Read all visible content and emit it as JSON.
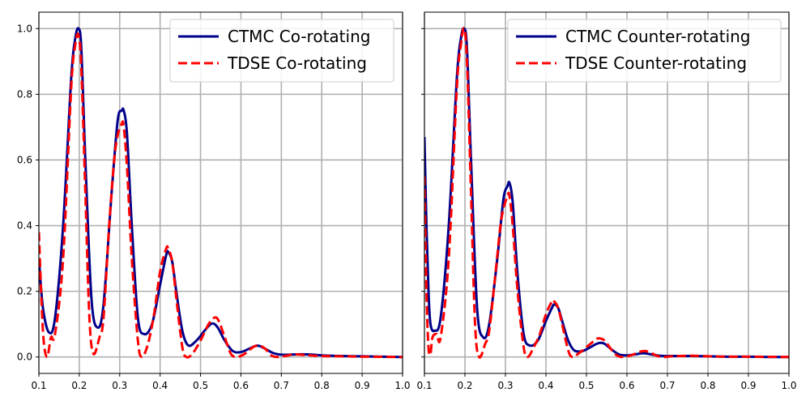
{
  "chart_data": [
    {
      "type": "line",
      "title": "",
      "xlabel": "",
      "ylabel": "",
      "xlim": [
        0.1,
        1.0
      ],
      "ylim": [
        -0.05,
        1.05
      ],
      "grid": true,
      "legend_position": "top-right",
      "x_ticks": [
        "0.1",
        "0.2",
        "0.3",
        "0.4",
        "0.5",
        "0.6",
        "0.7",
        "0.8",
        "0.9",
        "1.0"
      ],
      "y_ticks": [
        "0.0",
        "0.2",
        "0.4",
        "0.6",
        "0.8",
        "1.0"
      ],
      "series": [
        {
          "name": "CTMC Co-rotating",
          "color": "#00008b",
          "style": "solid",
          "x": [
            0.1,
            0.11,
            0.125,
            0.14,
            0.16,
            0.18,
            0.19,
            0.198,
            0.205,
            0.215,
            0.23,
            0.245,
            0.26,
            0.28,
            0.295,
            0.305,
            0.31,
            0.318,
            0.33,
            0.345,
            0.36,
            0.38,
            0.4,
            0.415,
            0.42,
            0.43,
            0.44,
            0.455,
            0.47,
            0.49,
            0.51,
            0.525,
            0.535,
            0.545,
            0.56,
            0.58,
            0.6,
            0.62,
            0.635,
            0.645,
            0.66,
            0.68,
            0.7,
            0.72,
            0.74,
            0.76,
            0.78,
            0.8,
            0.85,
            0.9,
            0.95,
            1.0
          ],
          "y": [
            0.3,
            0.15,
            0.075,
            0.12,
            0.4,
            0.85,
            0.97,
            1.0,
            0.94,
            0.6,
            0.18,
            0.09,
            0.16,
            0.5,
            0.72,
            0.75,
            0.75,
            0.68,
            0.4,
            0.12,
            0.07,
            0.1,
            0.22,
            0.31,
            0.32,
            0.29,
            0.2,
            0.08,
            0.035,
            0.05,
            0.08,
            0.1,
            0.1,
            0.085,
            0.05,
            0.018,
            0.015,
            0.025,
            0.033,
            0.034,
            0.025,
            0.012,
            0.007,
            0.007,
            0.008,
            0.008,
            0.007,
            0.005,
            0.003,
            0.002,
            0.001,
            0.0
          ]
        },
        {
          "name": "TDSE Co-rotating",
          "color": "#ff0000",
          "style": "dashed",
          "x": [
            0.1,
            0.11,
            0.12,
            0.13,
            0.14,
            0.16,
            0.18,
            0.19,
            0.198,
            0.205,
            0.215,
            0.225,
            0.235,
            0.25,
            0.26,
            0.275,
            0.29,
            0.305,
            0.31,
            0.318,
            0.33,
            0.345,
            0.355,
            0.37,
            0.385,
            0.4,
            0.415,
            0.42,
            0.43,
            0.44,
            0.455,
            0.465,
            0.48,
            0.5,
            0.52,
            0.535,
            0.545,
            0.56,
            0.575,
            0.59,
            0.61,
            0.63,
            0.645,
            0.66,
            0.675,
            0.69,
            0.71,
            0.73,
            0.76,
            0.8,
            0.85,
            0.9,
            1.0
          ],
          "y": [
            0.38,
            0.08,
            0.0,
            0.06,
            0.07,
            0.3,
            0.82,
            0.95,
            0.98,
            0.88,
            0.5,
            0.12,
            0.01,
            0.06,
            0.12,
            0.42,
            0.64,
            0.71,
            0.7,
            0.58,
            0.3,
            0.05,
            0.0,
            0.04,
            0.13,
            0.26,
            0.33,
            0.33,
            0.29,
            0.18,
            0.03,
            0.0,
            0.01,
            0.05,
            0.1,
            0.12,
            0.11,
            0.06,
            0.01,
            0.0,
            0.01,
            0.03,
            0.035,
            0.025,
            0.005,
            0.0,
            0.003,
            0.008,
            0.006,
            0.003,
            0.002,
            0.001,
            0.0
          ]
        }
      ]
    },
    {
      "type": "line",
      "title": "",
      "xlabel": "",
      "ylabel": "",
      "xlim": [
        0.1,
        1.0
      ],
      "ylim": [
        -0.05,
        1.05
      ],
      "grid": true,
      "legend_position": "top-right",
      "x_ticks": [
        "0.1",
        "0.2",
        "0.3",
        "0.4",
        "0.5",
        "0.6",
        "0.7",
        "0.8",
        "0.9",
        "1.0"
      ],
      "y_ticks": [],
      "series": [
        {
          "name": "CTMC Counter-rotating",
          "color": "#00008b",
          "style": "solid",
          "x": [
            0.1,
            0.105,
            0.11,
            0.115,
            0.125,
            0.14,
            0.16,
            0.18,
            0.19,
            0.198,
            0.205,
            0.215,
            0.23,
            0.245,
            0.26,
            0.28,
            0.295,
            0.305,
            0.31,
            0.318,
            0.33,
            0.345,
            0.36,
            0.38,
            0.4,
            0.415,
            0.42,
            0.43,
            0.44,
            0.455,
            0.47,
            0.49,
            0.51,
            0.525,
            0.535,
            0.545,
            0.56,
            0.58,
            0.6,
            0.62,
            0.635,
            0.645,
            0.66,
            0.68,
            0.7,
            0.74,
            0.76,
            0.8,
            0.85,
            0.9,
            0.95,
            1.0
          ],
          "y": [
            0.67,
            0.4,
            0.2,
            0.1,
            0.08,
            0.12,
            0.4,
            0.85,
            0.97,
            1.0,
            0.94,
            0.6,
            0.15,
            0.06,
            0.1,
            0.3,
            0.48,
            0.52,
            0.53,
            0.47,
            0.25,
            0.07,
            0.035,
            0.05,
            0.11,
            0.15,
            0.16,
            0.15,
            0.11,
            0.05,
            0.02,
            0.018,
            0.03,
            0.04,
            0.043,
            0.04,
            0.025,
            0.008,
            0.005,
            0.008,
            0.011,
            0.011,
            0.008,
            0.004,
            0.003,
            0.003,
            0.003,
            0.002,
            0.001,
            0.001,
            0.0,
            0.0
          ]
        },
        {
          "name": "TDSE Counter-rotating",
          "color": "#ff0000",
          "style": "dashed",
          "x": [
            0.1,
            0.105,
            0.11,
            0.115,
            0.12,
            0.13,
            0.14,
            0.16,
            0.18,
            0.19,
            0.198,
            0.205,
            0.215,
            0.225,
            0.235,
            0.25,
            0.26,
            0.275,
            0.29,
            0.305,
            0.31,
            0.318,
            0.33,
            0.345,
            0.355,
            0.37,
            0.385,
            0.4,
            0.415,
            0.42,
            0.43,
            0.44,
            0.455,
            0.465,
            0.48,
            0.5,
            0.52,
            0.53,
            0.545,
            0.56,
            0.575,
            0.59,
            0.61,
            0.63,
            0.645,
            0.66,
            0.675,
            0.69,
            0.71,
            0.76,
            0.8,
            0.85,
            0.9,
            1.0
          ],
          "y": [
            0.55,
            0.2,
            0.03,
            0.01,
            0.06,
            0.07,
            0.06,
            0.3,
            0.82,
            0.95,
            1.0,
            0.9,
            0.5,
            0.1,
            0.0,
            0.04,
            0.08,
            0.25,
            0.42,
            0.49,
            0.49,
            0.4,
            0.2,
            0.03,
            0.0,
            0.03,
            0.07,
            0.13,
            0.17,
            0.17,
            0.15,
            0.1,
            0.02,
            0.0,
            0.01,
            0.03,
            0.05,
            0.057,
            0.05,
            0.025,
            0.005,
            0.0,
            0.005,
            0.015,
            0.018,
            0.012,
            0.003,
            0.0,
            0.002,
            0.004,
            0.002,
            0.001,
            0.001,
            0.0
          ]
        }
      ]
    }
  ]
}
